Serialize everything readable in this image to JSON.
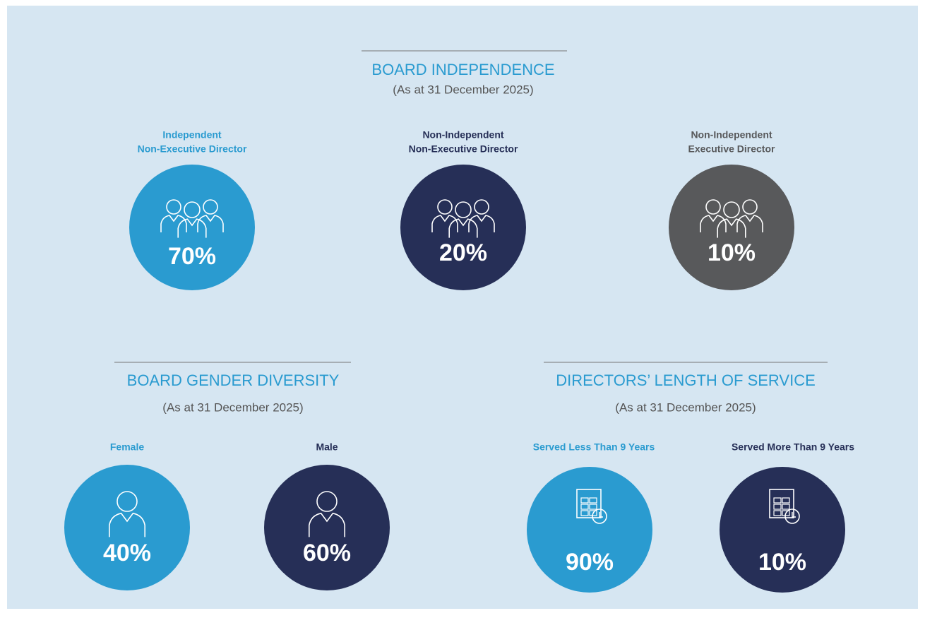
{
  "sections": [
    {
      "title": "BOARD INDEPENDENCE",
      "subtitle": "(As at 31 December 2025)",
      "items": [
        {
          "label": [
            "Independent",
            "Non-Executive Director"
          ],
          "value": "70%"
        },
        {
          "label": [
            "Non-Independent",
            "Non-Executive Director"
          ],
          "value": "20%"
        },
        {
          "label": [
            "Non-Independent",
            "Executive Director"
          ],
          "value": "10%"
        }
      ]
    },
    {
      "title": "BOARD GENDER DIVERSITY",
      "subtitle": "(As at 31 December 2025)",
      "items": [
        {
          "label": [
            "Female"
          ],
          "value": "40%"
        },
        {
          "label": [
            "Male"
          ],
          "value": "60%"
        }
      ]
    },
    {
      "title": "DIRECTORS’ LENGTH OF SERVICE",
      "subtitle": "(As at 31 December 2025)",
      "items": [
        {
          "label": [
            "Served Less Than 9 Years"
          ],
          "value": "90%"
        },
        {
          "label": [
            "Served More Than 9 Years"
          ],
          "value": "10%"
        }
      ]
    }
  ]
}
